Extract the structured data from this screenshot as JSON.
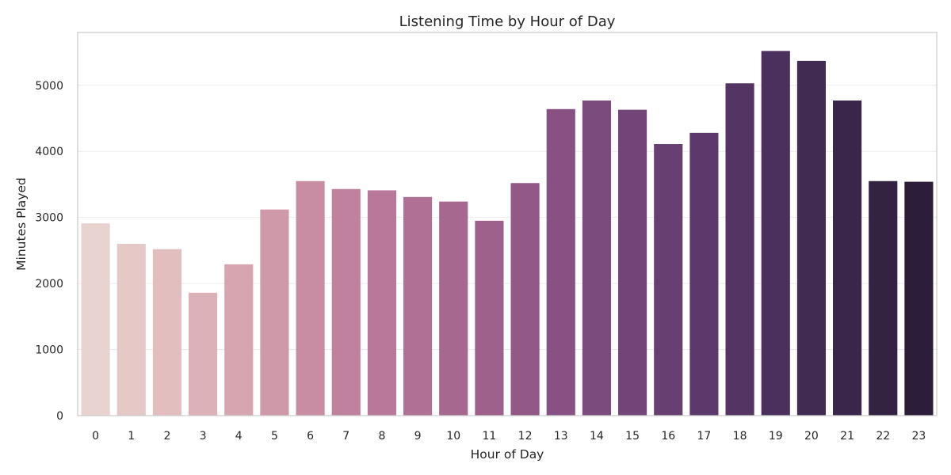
{
  "chart_data": {
    "type": "bar",
    "title": "Listening Time by Hour of Day",
    "xlabel": "Hour of Day",
    "ylabel": "Minutes Played",
    "categories": [
      "0",
      "1",
      "2",
      "3",
      "4",
      "5",
      "6",
      "7",
      "8",
      "9",
      "10",
      "11",
      "12",
      "13",
      "14",
      "15",
      "16",
      "17",
      "18",
      "19",
      "20",
      "21",
      "22",
      "23"
    ],
    "values": [
      2910,
      2600,
      2520,
      1860,
      2290,
      3120,
      3550,
      3430,
      3410,
      3310,
      3240,
      2950,
      3520,
      4640,
      4770,
      4630,
      4110,
      4280,
      5030,
      5520,
      5370,
      4770,
      3550,
      3540
    ],
    "ylim": [
      0,
      5800
    ],
    "yticks": [
      0,
      1000,
      2000,
      3000,
      4000,
      5000
    ],
    "grid": "horizontal",
    "colors": [
      "#e8d3d0",
      "#e5c9c7",
      "#e2bebf",
      "#dcb2b8",
      "#d6a5b0",
      "#cf99a9",
      "#c88ca3",
      "#c0819e",
      "#b97899",
      "#b07095",
      "#a76890",
      "#9d618b",
      "#925986",
      "#875283",
      "#7c4b7d",
      "#724477",
      "#673f71",
      "#5c396b",
      "#533463",
      "#4b2f5c",
      "#422b53",
      "#3a264a",
      "#332242",
      "#2c1e3b"
    ]
  }
}
